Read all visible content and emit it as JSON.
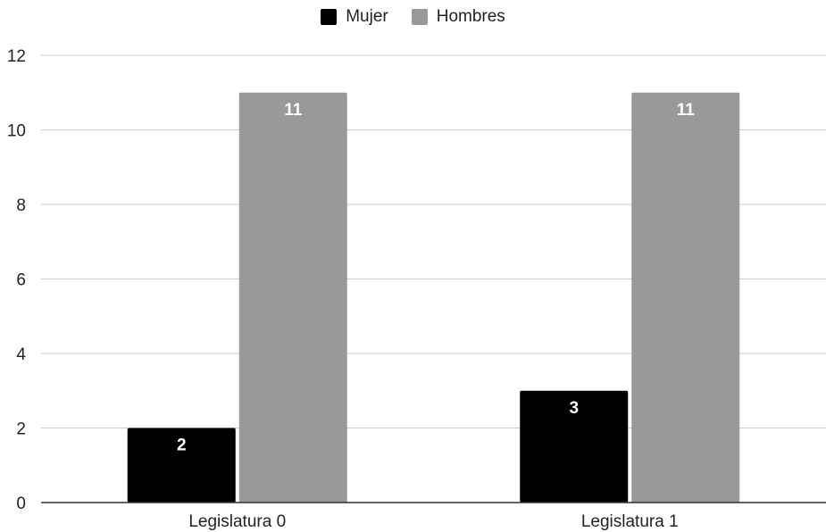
{
  "chart_data": {
    "type": "bar",
    "categories": [
      "Legislatura 0",
      "Legislatura 1"
    ],
    "series": [
      {
        "name": "Mujer",
        "values": [
          2,
          3
        ],
        "color": "#000000"
      },
      {
        "name": "Hombres",
        "values": [
          11,
          11
        ],
        "color": "#999999"
      }
    ],
    "ylim": [
      0,
      12
    ],
    "yticks": [
      0,
      2,
      4,
      6,
      8,
      10,
      12
    ],
    "grid": true,
    "legend_position": "top-center",
    "data_labels": true
  }
}
